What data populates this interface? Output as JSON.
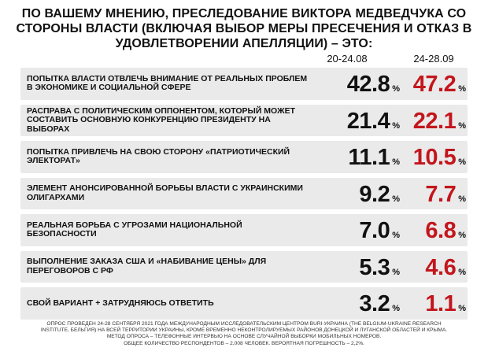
{
  "title": "ПО ВАШЕМУ МНЕНИЮ, ПРЕСЛЕДОВАНИЕ ВИКТОРА МЕДВЕДЧУКА СО СТОРОНЫ ВЛАСТИ (ВКЛЮЧАЯ ВЫБОР МЕРЫ ПРЕСЕЧЕНИЯ И ОТКАЗ В УДОВЛЕТВОРЕНИИ АПЕЛЛЯЦИИ) – ЭТО:",
  "percent_sign": "%",
  "colors": {
    "wave1": "#111111",
    "wave2": "#c3161c",
    "row_bg": "#eaeaea"
  },
  "chart_data": {
    "type": "table",
    "columns": [
      "20-24.08",
      "24-28.09"
    ],
    "unit": "%",
    "rows": [
      {
        "label": "ПОПЫТКА ВЛАСТИ ОТВЛЕЧЬ ВНИМАНИЕ ОТ РЕАЛЬНЫХ ПРОБЛЕМ В ЭКОНОМИКЕ И СОЦИАЛЬНОЙ СФЕРЕ",
        "values": [
          "42.8",
          "47.2"
        ]
      },
      {
        "label": "РАСПРАВА С ПОЛИТИЧЕСКИМ ОППОНЕНТОМ, КОТОРЫЙ МОЖЕТ СОСТАВИТЬ ОСНОВНУЮ КОНКУРЕНЦИЮ ПРЕЗИДЕНТУ НА ВЫБОРАХ",
        "values": [
          "21.4",
          "22.1"
        ]
      },
      {
        "label": "ПОПЫТКА ПРИВЛЕЧЬ НА СВОЮ СТОРОНУ «ПАТРИОТИЧЕСКИЙ ЭЛЕКТОРАТ»",
        "values": [
          "11.1",
          "10.5"
        ]
      },
      {
        "label": "ЭЛЕМЕНТ АНОНСИРОВАННОЙ БОРЬБЫ ВЛАСТИ С УКРАИНСКИМИ ОЛИГАРХАМИ",
        "values": [
          "9.2",
          "7.7"
        ]
      },
      {
        "label": "РЕАЛЬНАЯ БОРЬБА С УГРОЗАМИ НАЦИОНАЛЬНОЙ БЕЗОПАСНОСТИ",
        "values": [
          "7.0",
          "6.8"
        ]
      },
      {
        "label": "ВЫПОЛНЕНИЕ ЗАКАЗА США И «НАБИВАНИЕ ЦЕНЫ» ДЛЯ ПЕРЕГОВОРОВ С РФ",
        "values": [
          "5.3",
          "4.6"
        ]
      },
      {
        "label": "СВОЙ ВАРИАНТ + ЗАТРУДНЯЮСЬ ОТВЕТИТЬ",
        "values": [
          "3.2",
          "1.1"
        ]
      }
    ]
  },
  "footer": [
    "ОПРОС ПРОВЕДЕН 24-28 СЕНТЯБРЯ 2021 ГОДА МЕЖДУНАРОДНЫМ ИССЛЕДОВАТЕЛЬСКИМ ЦЕНТРОМ BURI-УКРАИНА (THE BELGIUM-UKRAINE RESEARCH",
    "INSTITUTE, БЕЛЬГИЯ) НА ВСЕЙ ТЕРРИТОРИИ УКРАИНЫ, КРОМЕ ВРЕМЕННО НЕКОНТРОЛИРУЕМЫХ РАЙОНОВ ДОНЕЦКОЙ И ЛУГАНСКОЙ ОБЛАСТЕЙ И КРЫМА.",
    "МЕТОД ОПРОСА – ТЕЛЕФОННЫЕ ИНТЕРВЬЮ НА ОСНОВЕ СЛУЧАЙНОЙ ВЫБОРКИ МОБИЛЬНЫХ НОМЕРОВ.",
    "ОБЩЕЕ КОЛИЧЕСТВО РЕСПОНДЕНТОВ – 2,008 ЧЕЛОВЕК. ВЕРОЯТНАЯ ПОГРЕШНОСТЬ – 2,2%."
  ]
}
